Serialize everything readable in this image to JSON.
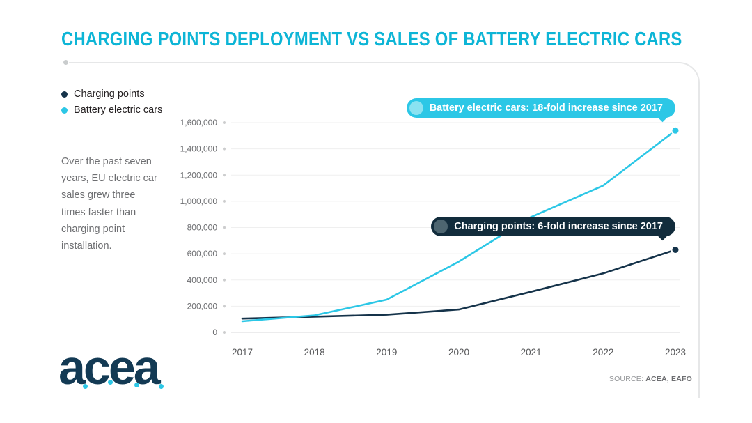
{
  "description": "Over the past seven years, EU electric car sales grew three times faster than charging point installation.",
  "source": {
    "label": "SOURCE:",
    "value": "ACEA, EAFO"
  },
  "logo": "acea",
  "colors": {
    "title": "#0db5d6",
    "charging_points": "#15334a",
    "battery_electric_cars": "#2cc7e6",
    "bev_callout_bg": "#2cc7e6",
    "bev_callout_circle": "#8ae2f1",
    "charging_callout_bg": "#122c3c",
    "charging_callout_circle": "#4d6570",
    "logo_navy": "#133a54",
    "text_gray": "#6d6e71"
  },
  "chart_data": {
    "type": "line",
    "title": "CHARGING POINTS DEPLOYMENT VS SALES OF BATTERY ELECTRIC CARS",
    "x": [
      "2017",
      "2018",
      "2019",
      "2020",
      "2021",
      "2022",
      "2023"
    ],
    "series": [
      {
        "name": "Charging points",
        "color": "#15334a",
        "values": [
          105000,
          120000,
          135000,
          175000,
          310000,
          450000,
          630000
        ]
      },
      {
        "name": "Battery electric cars",
        "color": "#2cc7e6",
        "values": [
          85000,
          130000,
          250000,
          540000,
          880000,
          1120000,
          1540000
        ]
      }
    ],
    "ylim": [
      0,
      1600000
    ],
    "ytick_step": 200000,
    "grid": true,
    "legend_position": "top-left",
    "annotations": [
      {
        "text": "Battery electric cars: 18-fold increase since 2017",
        "series": "Battery electric cars"
      },
      {
        "text": "Charging points: 6-fold increase since 2017",
        "series": "Charging points"
      }
    ]
  }
}
